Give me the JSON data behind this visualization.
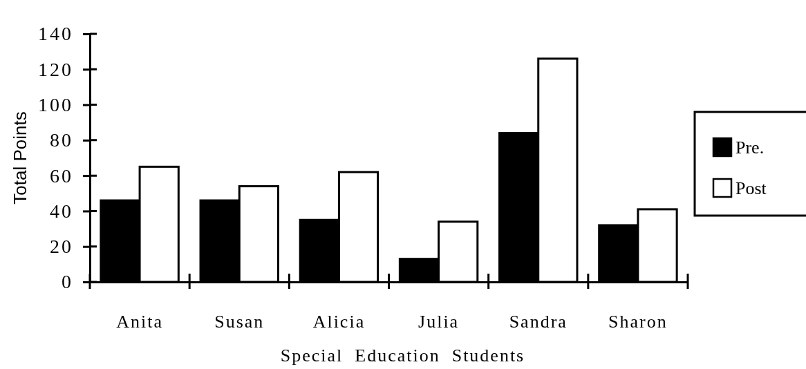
{
  "chart_data": {
    "type": "bar",
    "xlabel": "Special  Education  Students",
    "ylabel": "Total Points",
    "categories": [
      "Anita",
      "Susan",
      "Alicia",
      "Julia",
      "Sandra",
      "Sharon"
    ],
    "series": [
      {
        "name": "Pre.",
        "color": "#000000",
        "values": [
          46,
          46,
          35,
          13,
          84,
          32
        ]
      },
      {
        "name": "Post",
        "color": "#ffffff",
        "values": [
          65,
          54,
          62,
          34,
          126,
          41
        ]
      }
    ],
    "ylim": [
      0,
      140
    ],
    "yticks": [
      0,
      20,
      40,
      60,
      80,
      100,
      120,
      140
    ],
    "legend": "right"
  }
}
